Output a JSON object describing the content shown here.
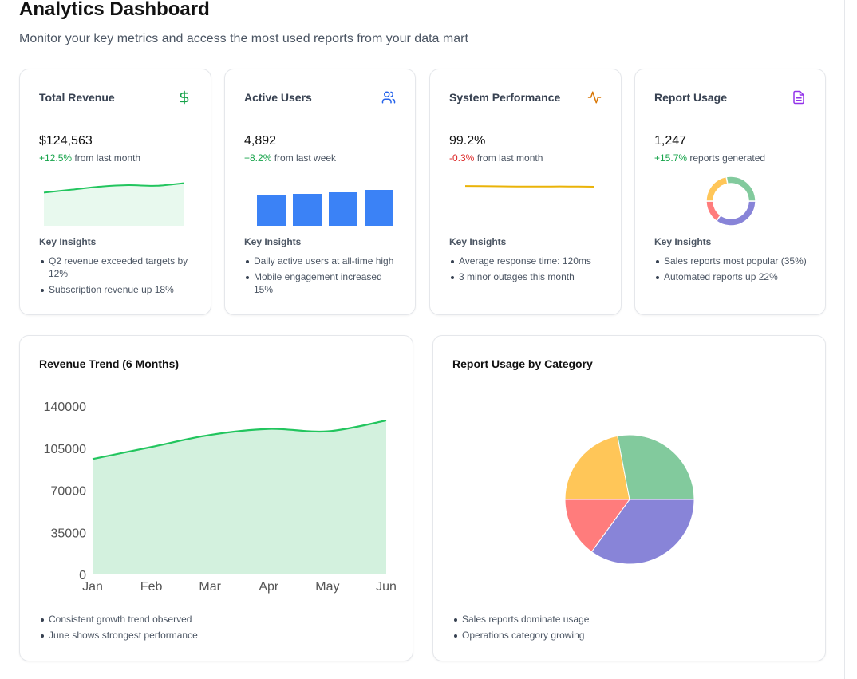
{
  "header": {
    "title": "Analytics Dashboard",
    "subtitle": "Monitor your key metrics and access the most used reports from your data mart"
  },
  "cards": [
    {
      "title": "Total Revenue",
      "icon": "dollar-icon",
      "icon_color": "#16a34a",
      "value": "$124,563",
      "change": "+12.5%",
      "change_color": "#16a34a",
      "change_suffix": " from last month",
      "insights_title": "Key Insights",
      "insights": [
        "Q2 revenue exceeded targets by 12%",
        "Subscription revenue up 18%"
      ],
      "chart_data": {
        "type": "area",
        "values": [
          96000,
          106000,
          116000,
          121000,
          119000,
          128000
        ],
        "color": "#22c55e",
        "fill": "#e8f9ee"
      }
    },
    {
      "title": "Active Users",
      "icon": "users-icon",
      "icon_color": "#2563eb",
      "value": "4,892",
      "change": "+8.2%",
      "change_color": "#16a34a",
      "change_suffix": " from last week",
      "insights_title": "Key Insights",
      "insights": [
        "Daily active users at all-time high",
        "Mobile engagement increased 15%"
      ],
      "chart_data": {
        "type": "bar",
        "values": [
          38,
          40,
          42,
          45
        ],
        "ylim": [
          0,
          48
        ],
        "color": "#3b82f6"
      }
    },
    {
      "title": "System Performance",
      "icon": "activity-icon",
      "icon_color": "#d97706",
      "value": "99.2%",
      "change": "-0.3%",
      "change_color": "#dc2626",
      "change_suffix": " from last month",
      "insights_title": "Key Insights",
      "insights": [
        "Average response time: 120ms",
        "3 minor outages this month"
      ],
      "chart_data": {
        "type": "line",
        "values": [
          99.5,
          99.4,
          99.3,
          99.3,
          99.3,
          99.2
        ],
        "color": "#eab308"
      }
    },
    {
      "title": "Report Usage",
      "icon": "file-text-icon",
      "icon_color": "#9333ea",
      "value": "1,247",
      "change": "+15.7%",
      "change_color": "#16a34a",
      "change_suffix": " reports generated",
      "insights_title": "Key Insights",
      "insights": [
        "Sales reports most popular (35%)",
        "Automated reports up 22%"
      ],
      "chart_data": {
        "type": "pie",
        "values": [
          35,
          15,
          22,
          28
        ],
        "colors": [
          "#8884d8",
          "#ff7c7c",
          "#ffc658",
          "#82ca9d"
        ]
      }
    }
  ],
  "revenue_trend": {
    "title": "Revenue Trend (6 Months)",
    "insights": [
      "Consistent growth trend observed",
      "June shows strongest performance"
    ],
    "chart_data": {
      "type": "area",
      "categories": [
        "Jan",
        "Feb",
        "Mar",
        "Apr",
        "May",
        "Jun"
      ],
      "values": [
        96000,
        106000,
        116000,
        121000,
        119000,
        128000
      ],
      "ylim": [
        0,
        140000
      ],
      "yticks": [
        0,
        35000,
        70000,
        105000,
        140000
      ],
      "line_color": "#22c55e",
      "fill_color": "#d3f1de"
    }
  },
  "report_usage_category": {
    "title": "Report Usage by Category",
    "insights": [
      "Sales reports dominate usage",
      "Operations category growing"
    ],
    "chart_data": {
      "type": "pie",
      "values": [
        35,
        15,
        22,
        28
      ],
      "colors": [
        "#8884d8",
        "#ff7c7c",
        "#ffc658",
        "#82ca9d"
      ]
    }
  }
}
